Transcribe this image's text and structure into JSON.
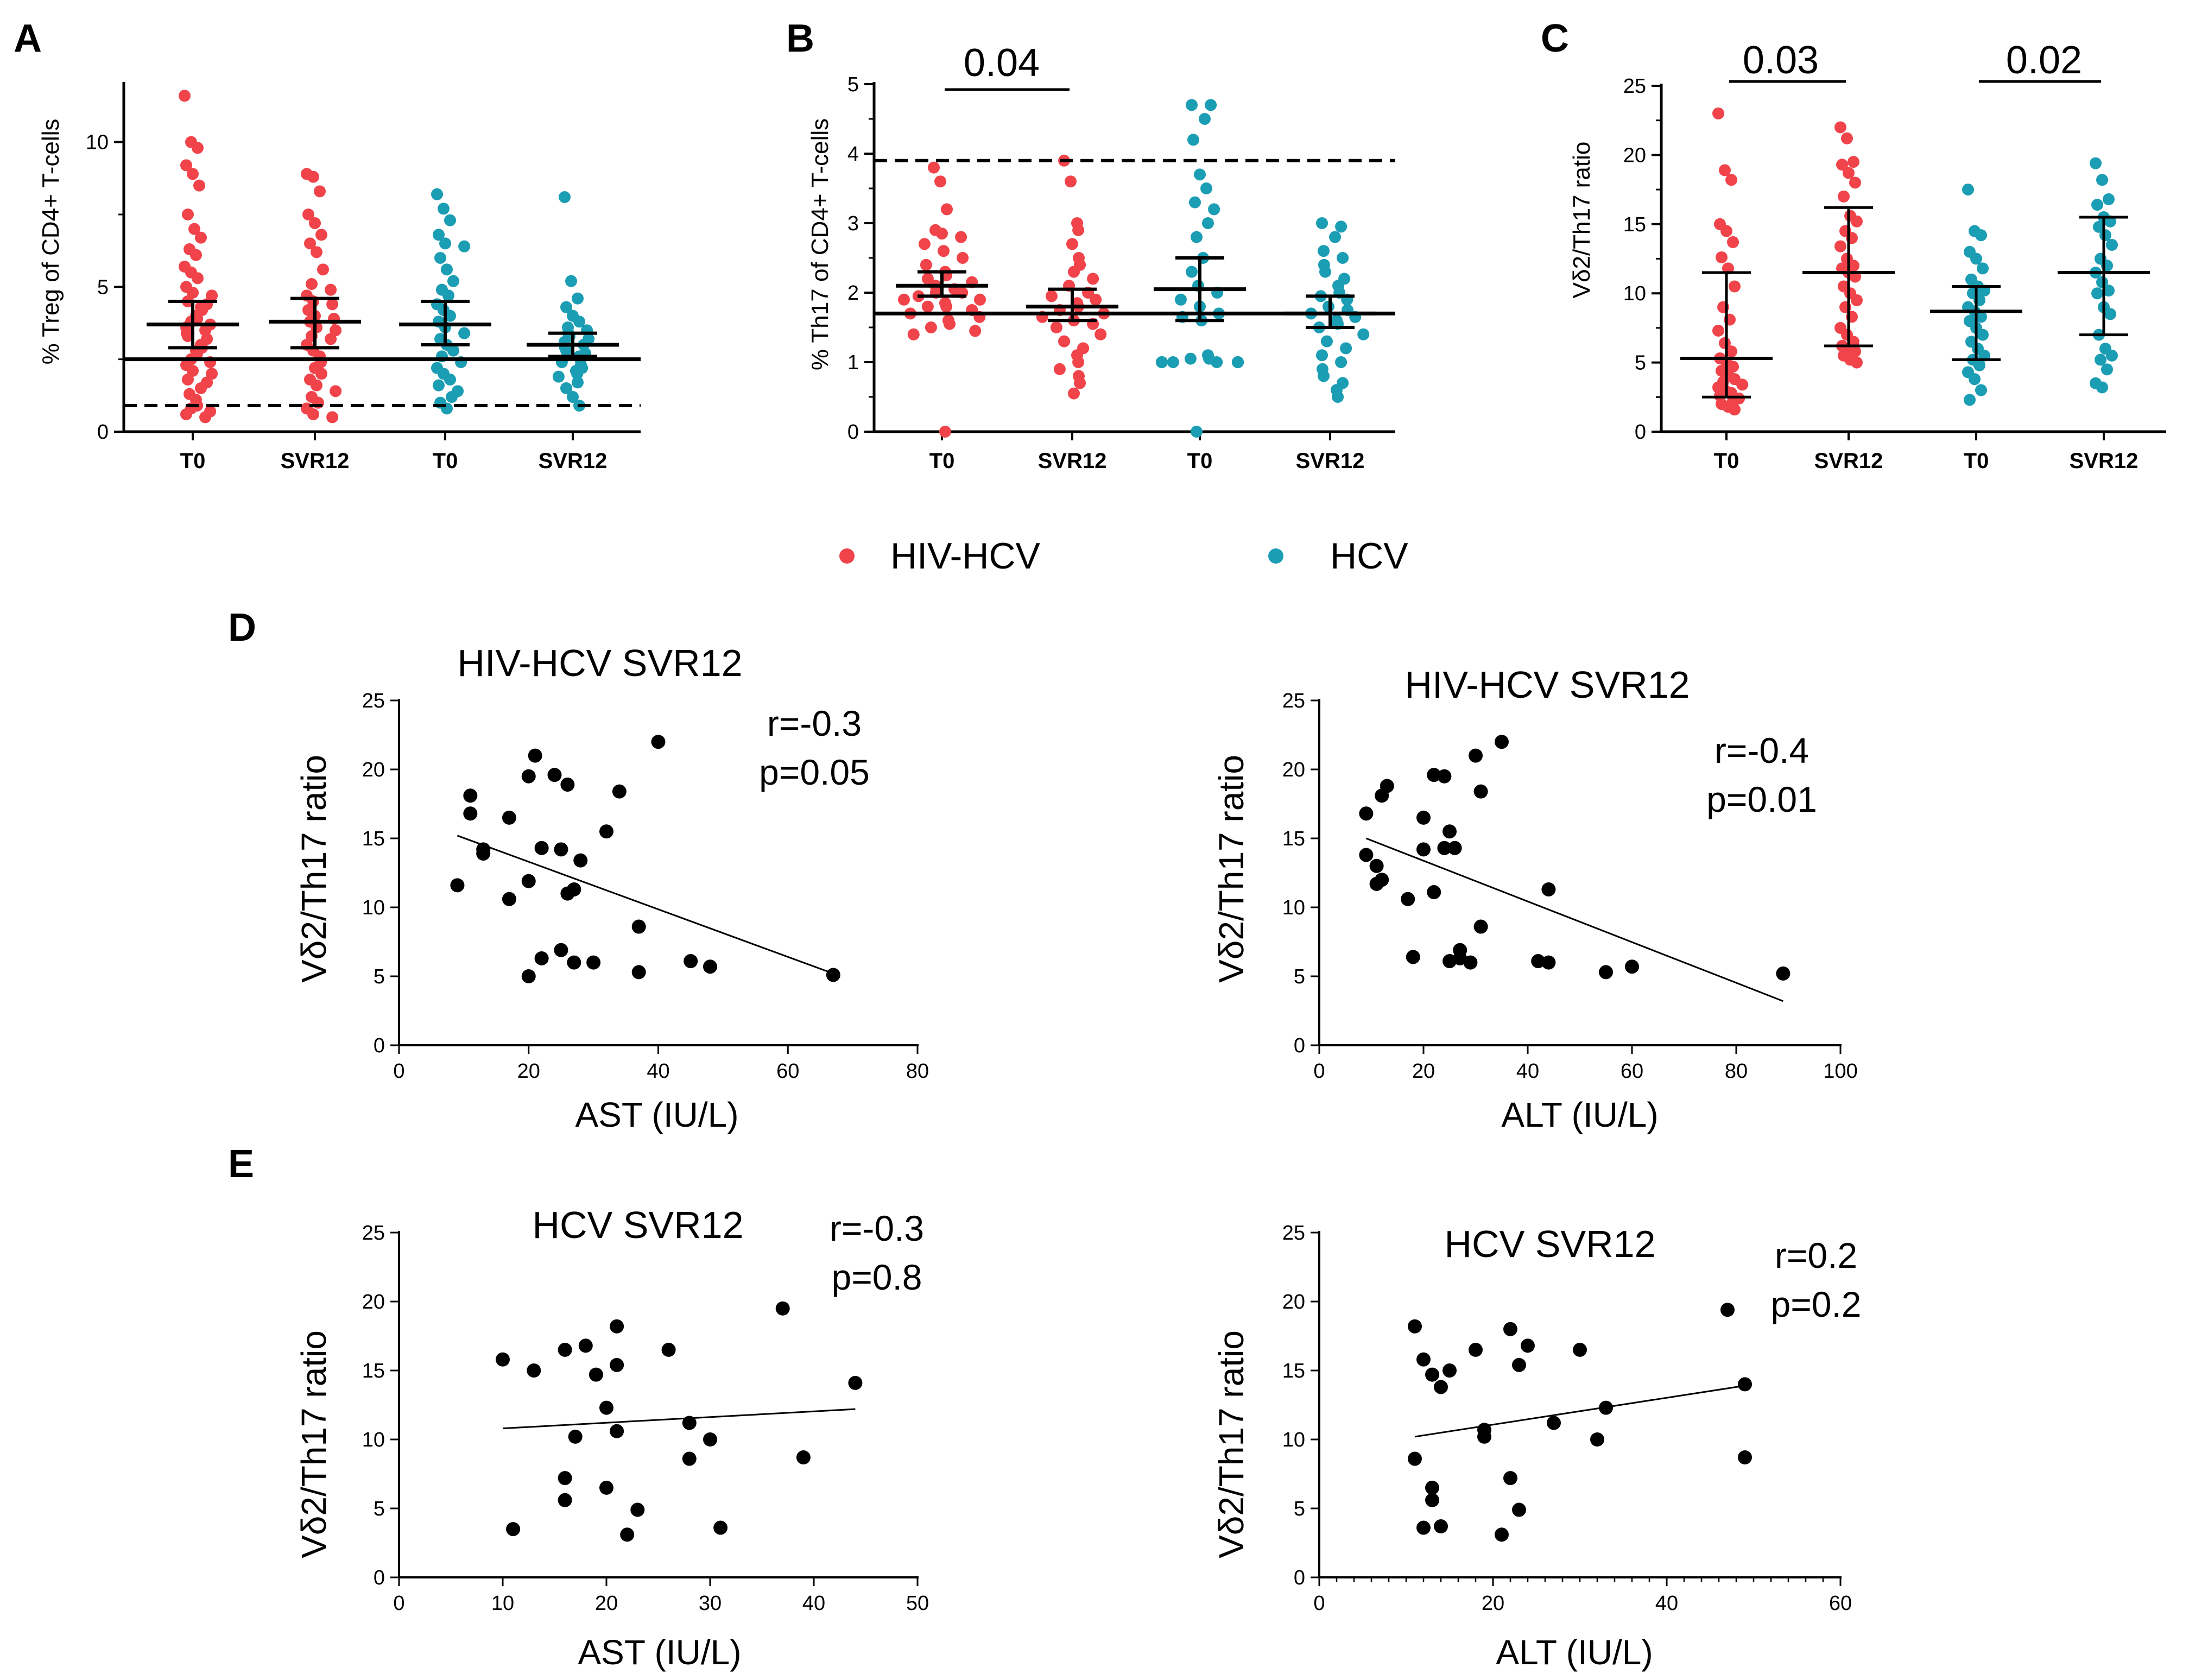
{
  "colors": {
    "hiv_hcv": "#f0434a",
    "hcv": "#1b9db3",
    "black": "#000000"
  },
  "legend": {
    "items": [
      {
        "label": "HIV-HCV",
        "color": "#f0434a"
      },
      {
        "label": "HCV",
        "color": "#1b9db3"
      }
    ]
  },
  "chart_data": [
    {
      "id": "A",
      "letter": "A",
      "type": "scatter",
      "ylabel": "% Treg of CD4+ T-cells",
      "ylim": [
        0,
        12
      ],
      "yticks": [
        0,
        5,
        10
      ],
      "categories": [
        "T0",
        "SVR12",
        "T0",
        "SVR12"
      ],
      "reference_lines": {
        "solid": 2.5,
        "dashed": 0.9
      },
      "series": [
        {
          "name": "HIV-HCV T0",
          "group": "HIV-HCV",
          "median": 3.7,
          "ci": [
            2.9,
            4.5
          ],
          "values": [
            11.6,
            10.0,
            9.8,
            9.2,
            8.9,
            8.5,
            7.5,
            7.0,
            6.7,
            6.3,
            6.1,
            5.7,
            5.5,
            5.3,
            5.0,
            4.8,
            4.7,
            4.5,
            4.4,
            4.3,
            4.2,
            4.0,
            3.9,
            3.8,
            3.7,
            3.6,
            3.5,
            3.4,
            3.3,
            3.2,
            3.0,
            2.9,
            2.8,
            2.7,
            2.5,
            2.4,
            2.3,
            2.1,
            2.0,
            1.8,
            1.7,
            1.5,
            1.3,
            1.1,
            0.9,
            0.8,
            0.7,
            0.6,
            0.5
          ]
        },
        {
          "name": "HIV-HCV SVR12",
          "group": "HIV-HCV",
          "median": 3.8,
          "ci": [
            2.9,
            4.6
          ],
          "values": [
            8.9,
            8.8,
            8.3,
            7.5,
            7.2,
            6.8,
            6.5,
            6.2,
            5.6,
            5.1,
            4.9,
            4.7,
            4.5,
            4.4,
            4.2,
            4.0,
            3.9,
            3.8,
            3.6,
            3.5,
            3.3,
            3.2,
            3.0,
            2.8,
            2.6,
            2.4,
            2.2,
            2.0,
            1.8,
            1.6,
            1.4,
            1.2,
            1.0,
            0.8,
            0.6,
            0.5
          ]
        },
        {
          "name": "HCV T0",
          "group": "HCV",
          "median": 3.7,
          "ci": [
            3.0,
            4.5
          ],
          "values": [
            8.2,
            7.7,
            7.3,
            6.8,
            6.5,
            6.4,
            6.0,
            5.6,
            5.2,
            4.9,
            4.7,
            4.4,
            4.2,
            4.0,
            3.8,
            3.6,
            3.4,
            3.2,
            3.0,
            2.8,
            2.6,
            2.4,
            2.2,
            2.0,
            1.8,
            1.6,
            1.4,
            1.2,
            1.0,
            0.8
          ]
        },
        {
          "name": "HCV SVR12",
          "group": "HCV",
          "median": 3.0,
          "ci": [
            2.6,
            3.4
          ],
          "values": [
            8.1,
            5.2,
            4.6,
            4.3,
            4.0,
            3.8,
            3.6,
            3.5,
            3.4,
            3.3,
            3.2,
            3.1,
            3.0,
            2.9,
            2.8,
            2.7,
            2.6,
            2.5,
            2.4,
            2.3,
            2.2,
            2.1,
            2.0,
            1.9,
            1.7,
            1.5,
            1.2,
            0.9
          ]
        }
      ],
      "comparisons": []
    },
    {
      "id": "B",
      "letter": "B",
      "type": "scatter",
      "ylabel": "% Th17 of CD4+ T-cells",
      "ylim": [
        0,
        5
      ],
      "yticks": [
        0,
        1,
        2,
        3,
        4,
        5
      ],
      "categories": [
        "T0",
        "SVR12",
        "T0",
        "SVR12"
      ],
      "reference_lines": {
        "solid": 1.7,
        "dashed": 3.9
      },
      "series": [
        {
          "name": "HIV-HCV T0",
          "group": "HIV-HCV",
          "median": 2.1,
          "ci": [
            1.95,
            2.3
          ],
          "values": [
            3.8,
            3.6,
            3.2,
            2.9,
            2.85,
            2.8,
            2.7,
            2.6,
            2.5,
            2.4,
            2.3,
            2.25,
            2.2,
            2.15,
            2.1,
            2.05,
            2.0,
            2.0,
            1.95,
            1.9,
            1.9,
            1.85,
            1.8,
            1.8,
            1.75,
            1.7,
            1.65,
            1.6,
            1.55,
            1.5,
            1.45,
            1.4,
            0.0
          ]
        },
        {
          "name": "HIV-HCV SVR12",
          "group": "HIV-HCV",
          "median": 1.8,
          "ci": [
            1.6,
            2.05
          ],
          "values": [
            3.9,
            3.6,
            3.0,
            2.9,
            2.7,
            2.5,
            2.4,
            2.3,
            2.2,
            2.1,
            2.0,
            1.95,
            1.9,
            1.85,
            1.8,
            1.75,
            1.7,
            1.65,
            1.6,
            1.55,
            1.5,
            1.4,
            1.3,
            1.2,
            1.1,
            1.0,
            0.9,
            0.8,
            0.7,
            0.55
          ]
        },
        {
          "name": "HCV T0",
          "group": "HCV",
          "median": 2.05,
          "ci": [
            1.6,
            2.5
          ],
          "values": [
            4.7,
            4.7,
            4.5,
            4.2,
            3.7,
            3.5,
            3.3,
            3.2,
            3.0,
            2.8,
            2.5,
            2.3,
            2.1,
            2.0,
            1.9,
            1.8,
            1.7,
            1.65,
            1.6,
            1.1,
            1.05,
            1.05,
            1.0,
            1.0,
            1.0,
            1.0,
            1.0,
            1.0,
            1.0,
            1.0,
            1.0,
            0.0
          ]
        },
        {
          "name": "HCV SVR12",
          "group": "HCV",
          "median": 1.7,
          "ci": [
            1.5,
            1.95
          ],
          "values": [
            3.0,
            2.95,
            2.8,
            2.6,
            2.5,
            2.4,
            2.3,
            2.2,
            2.1,
            2.0,
            1.95,
            1.9,
            1.8,
            1.75,
            1.7,
            1.65,
            1.6,
            1.55,
            1.5,
            1.4,
            1.3,
            1.2,
            1.1,
            1.0,
            0.9,
            0.8,
            0.7,
            0.6,
            0.5
          ]
        }
      ],
      "comparisons": [
        {
          "from": 0,
          "to": 1,
          "label": "0.04"
        }
      ]
    },
    {
      "id": "C",
      "letter": "C",
      "type": "scatter",
      "ylabel": "Vδ2/Th17 ratio",
      "ylim": [
        0,
        25
      ],
      "yticks": [
        0,
        5,
        10,
        15,
        20,
        25
      ],
      "categories": [
        "T0",
        "SVR12",
        "T0",
        "SVR12"
      ],
      "reference_lines": {},
      "series": [
        {
          "name": "HIV-HCV T0",
          "group": "HIV-HCV",
          "median": 5.3,
          "ci": [
            2.5,
            11.5
          ],
          "error_style": "iqr",
          "values": [
            23.0,
            18.9,
            18.2,
            15.0,
            14.5,
            13.7,
            12.6,
            11.8,
            10.5,
            9.0,
            8.1,
            7.3,
            6.4,
            5.8,
            5.3,
            5.0,
            4.7,
            4.4,
            4.1,
            3.8,
            3.6,
            3.4,
            3.2,
            3.0,
            2.8,
            2.6,
            2.4,
            2.2,
            2.0,
            1.8,
            1.6
          ]
        },
        {
          "name": "HIV-HCV SVR12",
          "group": "HIV-HCV",
          "median": 11.5,
          "ci": [
            6.2,
            16.2
          ],
          "error_style": "iqr",
          "values": [
            22.0,
            21.2,
            19.5,
            19.3,
            18.7,
            18.0,
            17.0,
            15.6,
            15.2,
            14.5,
            14.0,
            13.4,
            12.5,
            12.0,
            11.8,
            11.5,
            11.2,
            10.5,
            10.0,
            9.5,
            9.0,
            8.3,
            7.5,
            7.0,
            6.5,
            6.2,
            6.0,
            5.8,
            5.5,
            5.2,
            5.0
          ]
        },
        {
          "name": "HCV T0",
          "group": "HCV",
          "median": 8.7,
          "ci": [
            5.2,
            10.5
          ],
          "error_style": "iqr",
          "values": [
            17.5,
            14.5,
            14.2,
            13.0,
            12.5,
            11.8,
            11.0,
            10.5,
            10.2,
            10.0,
            9.5,
            9.0,
            8.7,
            8.3,
            8.0,
            7.5,
            7.0,
            6.5,
            6.0,
            5.5,
            5.2,
            4.8,
            4.3,
            3.8,
            3.0,
            2.3
          ]
        },
        {
          "name": "HCV SVR12",
          "group": "HCV",
          "median": 11.5,
          "ci": [
            7.0,
            15.5
          ],
          "error_style": "iqr",
          "values": [
            19.4,
            18.2,
            16.8,
            16.4,
            15.5,
            15.2,
            14.8,
            14.2,
            13.5,
            12.5,
            12.0,
            11.5,
            10.8,
            10.2,
            10.0,
            9.0,
            8.5,
            7.0,
            6.0,
            5.5,
            5.2,
            4.5,
            3.5,
            3.2
          ]
        }
      ],
      "comparisons": [
        {
          "from": 0,
          "to": 1,
          "label": "0.03"
        },
        {
          "from": 2,
          "to": 3,
          "label": "0.02"
        }
      ]
    },
    {
      "id": "D1",
      "letter": "D",
      "type": "scatter",
      "title": "HIV-HCV SVR12",
      "xlabel": "AST (IU/L)",
      "ylabel": "Vδ2/Th17 ratio",
      "xlim": [
        0,
        80
      ],
      "xticks": [
        0,
        20,
        40,
        60,
        80
      ],
      "ylim": [
        0,
        25
      ],
      "yticks": [
        0,
        5,
        10,
        15,
        20,
        25
      ],
      "x_minor_ticks": false,
      "stats": {
        "r": "r=-0.3",
        "p": "p=0.05"
      },
      "trend": {
        "x": [
          9,
          67
        ],
        "y": [
          15.2,
          5.2
        ]
      },
      "x": [
        9,
        11,
        11,
        13,
        13,
        17,
        17,
        20,
        20,
        20,
        21,
        22,
        22,
        24,
        25,
        25,
        26,
        26,
        27,
        27,
        28,
        30,
        32,
        34,
        37,
        37,
        40,
        45,
        48,
        67
      ],
      "y": [
        11.6,
        18.1,
        16.8,
        14.2,
        13.9,
        16.5,
        10.6,
        19.5,
        11.9,
        5.0,
        21.0,
        14.3,
        6.3,
        19.6,
        6.9,
        14.2,
        18.9,
        11.0,
        6.0,
        11.3,
        13.4,
        6.0,
        15.5,
        18.4,
        8.6,
        5.3,
        22.0,
        6.1,
        5.7,
        5.1
      ]
    },
    {
      "id": "D2",
      "letter": "",
      "type": "scatter",
      "title": "HIV-HCV SVR12",
      "xlabel": "ALT (IU/L)",
      "ylabel": "Vδ2/Th17 ratio",
      "xlim": [
        0,
        100
      ],
      "xticks": [
        0,
        20,
        40,
        60,
        80,
        100
      ],
      "ylim": [
        0,
        25
      ],
      "yticks": [
        0,
        5,
        10,
        15,
        20,
        25
      ],
      "x_minor_ticks": false,
      "stats": {
        "r": "r=-0.4",
        "p": "p=0.01"
      },
      "trend": {
        "x": [
          9,
          89
        ],
        "y": [
          15.0,
          3.2
        ]
      },
      "x": [
        9,
        9,
        11,
        11,
        12,
        12,
        13,
        17,
        18,
        20,
        20,
        22,
        22,
        24,
        24,
        25,
        25,
        26,
        27,
        27,
        29,
        30,
        31,
        31,
        35,
        42,
        44,
        44,
        55,
        60,
        89
      ],
      "y": [
        16.8,
        13.8,
        13.0,
        11.7,
        18.1,
        12.0,
        18.8,
        10.6,
        6.4,
        16.5,
        14.2,
        11.1,
        19.6,
        14.3,
        19.5,
        15.5,
        6.1,
        14.3,
        6.9,
        6.3,
        6.0,
        21.0,
        18.4,
        8.6,
        22.0,
        6.1,
        11.3,
        6.0,
        5.3,
        5.7,
        5.2
      ]
    },
    {
      "id": "E1",
      "letter": "E",
      "type": "scatter",
      "title": "HCV SVR12",
      "xlabel": "AST (IU/L)",
      "ylabel": "Vδ2/Th17 ratio",
      "xlim": [
        0,
        50
      ],
      "xticks": [
        0,
        10,
        20,
        30,
        40,
        50
      ],
      "ylim": [
        0,
        25
      ],
      "yticks": [
        0,
        5,
        10,
        15,
        20,
        25
      ],
      "x_minor_ticks": false,
      "stats": {
        "r": "r=-0.3",
        "p": "p=0.8"
      },
      "trend": {
        "x": [
          10,
          44
        ],
        "y": [
          10.8,
          12.2
        ]
      },
      "x": [
        10,
        11,
        13,
        16,
        16,
        16,
        17,
        18,
        19,
        20,
        20,
        21,
        21,
        21,
        22,
        23,
        26,
        28,
        28,
        30,
        31,
        37,
        39,
        44
      ],
      "y": [
        15.8,
        3.5,
        15.0,
        16.5,
        7.2,
        5.6,
        10.2,
        16.8,
        14.7,
        12.3,
        6.5,
        18.2,
        15.4,
        10.6,
        3.1,
        4.9,
        16.5,
        11.2,
        8.6,
        10.0,
        3.6,
        19.5,
        8.7,
        14.1
      ]
    },
    {
      "id": "E2",
      "letter": "",
      "type": "scatter",
      "title": "HCV SVR12",
      "xlabel": "ALT (IU/L)",
      "ylabel": "Vδ2/Th17 ratio",
      "xlim": [
        0,
        60
      ],
      "xticks": [
        0,
        20,
        40,
        60
      ],
      "ylim": [
        0,
        25
      ],
      "yticks": [
        0,
        5,
        10,
        15,
        20,
        25
      ],
      "x_minor_ticks": true,
      "stats": {
        "r": "r=0.2",
        "p": "p=0.2"
      },
      "trend": {
        "x": [
          11,
          49
        ],
        "y": [
          10.2,
          13.9
        ]
      },
      "x": [
        11,
        11,
        12,
        12,
        13,
        13,
        13,
        14,
        14,
        15,
        18,
        19,
        19,
        21,
        22,
        22,
        23,
        23,
        24,
        27,
        30,
        32,
        33,
        47,
        49,
        49
      ],
      "y": [
        18.2,
        8.6,
        15.8,
        3.6,
        14.7,
        6.5,
        5.6,
        13.8,
        3.7,
        15.0,
        16.5,
        10.7,
        10.2,
        3.1,
        7.2,
        18.0,
        15.4,
        4.9,
        16.8,
        11.2,
        16.5,
        10.0,
        12.3,
        19.4,
        14.0,
        8.7
      ]
    }
  ]
}
